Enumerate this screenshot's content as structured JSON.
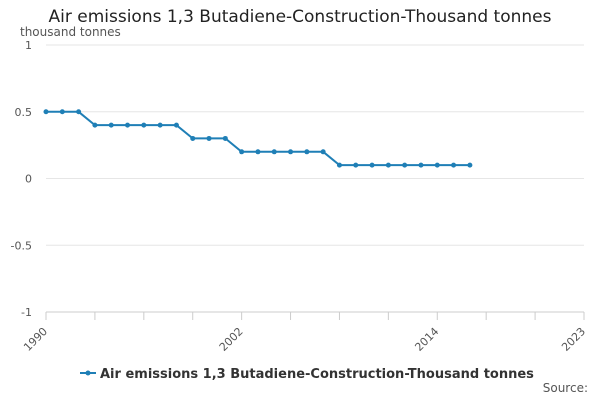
{
  "chart_data": {
    "type": "line",
    "title": "Air emissions 1,3 Butadiene-Construction-Thousand tonnes",
    "ylabel": "thousand tonnes",
    "xlabel": "",
    "x": [
      1990,
      1991,
      1992,
      1993,
      1994,
      1995,
      1996,
      1997,
      1998,
      1999,
      2000,
      2001,
      2002,
      2003,
      2004,
      2005,
      2006,
      2007,
      2008,
      2009,
      2010,
      2011,
      2012,
      2013,
      2014,
      2015,
      2016
    ],
    "series": [
      {
        "name": "Air emissions 1,3 Butadiene-Construction-Thousand tonnes",
        "values": [
          0.5,
          0.5,
          0.5,
          0.4,
          0.4,
          0.4,
          0.4,
          0.4,
          0.4,
          0.3,
          0.3,
          0.3,
          0.2,
          0.2,
          0.2,
          0.2,
          0.2,
          0.2,
          0.1,
          0.1,
          0.1,
          0.1,
          0.1,
          0.1,
          0.1,
          0.1,
          0.1
        ]
      }
    ],
    "xlim": [
      1990,
      2023
    ],
    "ylim": [
      -1,
      1
    ],
    "x_tick_labels": [
      "1990",
      "2002",
      "2014",
      "2023"
    ],
    "y_tick_labels": [
      "1",
      "0.5",
      "0",
      "-0.5",
      "-1"
    ],
    "grid": true,
    "legend_position": "bottom",
    "line_color": "#1f7fb6"
  },
  "source_label": "Source:"
}
